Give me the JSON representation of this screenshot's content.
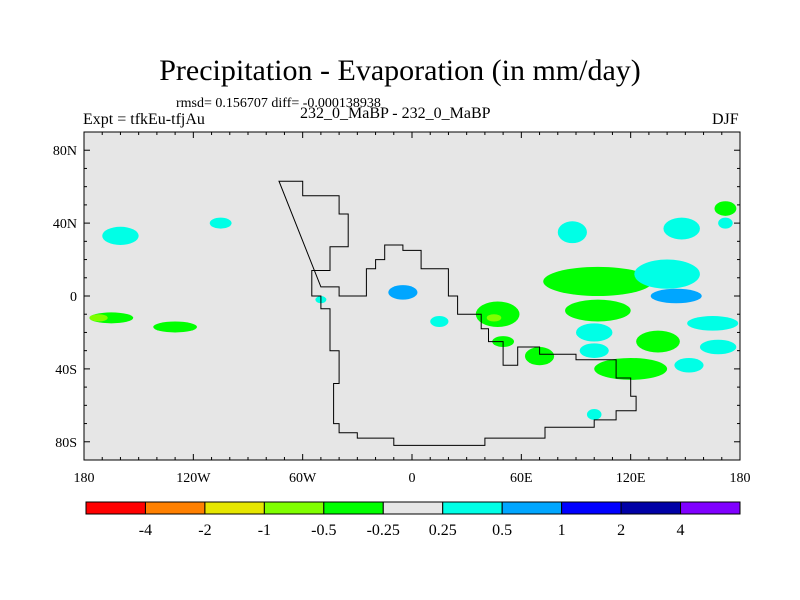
{
  "chart_data": {
    "type": "heatmap",
    "title": "Precipitation - Evaporation (in mm/day)",
    "stats_line": "rmsd= 0.156707 diff= -0.000138938",
    "left_label": "Expt = tfkEu-tfjAu",
    "center_label": "232_0_MaBP - 232_0_MaBP",
    "right_label": "DJF",
    "x_ticks": [
      "180",
      "120W",
      "60W",
      "0",
      "60E",
      "120E",
      "180"
    ],
    "x_tick_values": [
      -180,
      -120,
      -60,
      0,
      60,
      120,
      180
    ],
    "y_ticks": [
      "80N",
      "40N",
      "0",
      "40S",
      "80S"
    ],
    "y_tick_values": [
      80,
      40,
      0,
      -40,
      -80
    ],
    "xlim": [
      -180,
      180
    ],
    "ylim": [
      -90,
      90
    ],
    "colorbar": {
      "labels": [
        "-4",
        "-2",
        "-1",
        "-0.5",
        "-0.25",
        "0.25",
        "0.5",
        "1",
        "2",
        "4"
      ],
      "colors": [
        "#ff0000",
        "#ff8000",
        "#e6e600",
        "#80ff00",
        "#00ff00",
        "#e6e6e6",
        "#00ffe6",
        "#00a6ff",
        "#0000ff",
        "#0000a6",
        "#8000ff"
      ]
    },
    "background_color": "#e6e6e6",
    "anomalies": [
      {
        "lon": -165,
        "lat": -12,
        "rx": 12,
        "ry": 3,
        "level": "-0.25"
      },
      {
        "lon": -130,
        "lat": -17,
        "rx": 12,
        "ry": 3,
        "level": "-0.25"
      },
      {
        "lon": -172,
        "lat": -12,
        "rx": 5,
        "ry": 2,
        "level": "-0.5"
      },
      {
        "lon": -160,
        "lat": 33,
        "rx": 10,
        "ry": 5,
        "level": "0.25"
      },
      {
        "lon": -105,
        "lat": 40,
        "rx": 6,
        "ry": 3,
        "level": "0.25"
      },
      {
        "lon": -5,
        "lat": 2,
        "rx": 8,
        "ry": 4,
        "level": "0.5"
      },
      {
        "lon": 15,
        "lat": -14,
        "rx": 5,
        "ry": 3,
        "level": "0.25"
      },
      {
        "lon": 47,
        "lat": -10,
        "rx": 12,
        "ry": 7,
        "level": "-0.25"
      },
      {
        "lon": 45,
        "lat": -12,
        "rx": 4,
        "ry": 2,
        "level": "-0.5"
      },
      {
        "lon": 70,
        "lat": -33,
        "rx": 8,
        "ry": 5,
        "level": "-0.25"
      },
      {
        "lon": 88,
        "lat": 35,
        "rx": 8,
        "ry": 6,
        "level": "0.25"
      },
      {
        "lon": 102,
        "lat": 8,
        "rx": 30,
        "ry": 8,
        "level": "-0.25"
      },
      {
        "lon": 140,
        "lat": 12,
        "rx": 18,
        "ry": 8,
        "level": "0.25"
      },
      {
        "lon": 145,
        "lat": 0,
        "rx": 14,
        "ry": 4,
        "level": "0.5"
      },
      {
        "lon": 102,
        "lat": -8,
        "rx": 18,
        "ry": 6,
        "level": "-0.25"
      },
      {
        "lon": 100,
        "lat": -20,
        "rx": 10,
        "ry": 5,
        "level": "0.25"
      },
      {
        "lon": 135,
        "lat": -25,
        "rx": 12,
        "ry": 6,
        "level": "-0.25"
      },
      {
        "lon": 120,
        "lat": -40,
        "rx": 20,
        "ry": 6,
        "level": "-0.25"
      },
      {
        "lon": 100,
        "lat": -30,
        "rx": 8,
        "ry": 4,
        "level": "0.25"
      },
      {
        "lon": 148,
        "lat": 37,
        "rx": 10,
        "ry": 6,
        "level": "0.25"
      },
      {
        "lon": 172,
        "lat": 48,
        "rx": 6,
        "ry": 4,
        "level": "-0.25"
      },
      {
        "lon": 172,
        "lat": 40,
        "rx": 4,
        "ry": 3,
        "level": "0.25"
      },
      {
        "lon": 165,
        "lat": -15,
        "rx": 14,
        "ry": 4,
        "level": "0.25"
      },
      {
        "lon": 168,
        "lat": -28,
        "rx": 10,
        "ry": 4,
        "level": "0.25"
      },
      {
        "lon": 152,
        "lat": -38,
        "rx": 8,
        "ry": 4,
        "level": "0.25"
      },
      {
        "lon": 50,
        "lat": -25,
        "rx": 6,
        "ry": 3,
        "level": "-0.25"
      },
      {
        "lon": 100,
        "lat": -65,
        "rx": 4,
        "ry": 3,
        "level": "0.25"
      },
      {
        "lon": -50,
        "lat": -2,
        "rx": 3,
        "ry": 2,
        "level": "0.25"
      }
    ],
    "outlines": [
      [
        [
          -73,
          63
        ],
        [
          -60,
          63
        ],
        [
          -60,
          55
        ],
        [
          -40,
          55
        ],
        [
          -40,
          45
        ],
        [
          -35,
          45
        ],
        [
          -35,
          27
        ],
        [
          -45,
          27
        ],
        [
          -45,
          14
        ],
        [
          -55,
          14
        ],
        [
          -55,
          0
        ],
        [
          -50,
          0
        ],
        [
          -50,
          -7
        ],
        [
          -45,
          -7
        ],
        [
          -45,
          -30
        ],
        [
          -40,
          -30
        ],
        [
          -40,
          -48
        ],
        [
          -43,
          -48
        ],
        [
          -43,
          -55
        ],
        [
          -43,
          -70
        ],
        [
          -40,
          -70
        ],
        [
          -40,
          -75
        ],
        [
          -30,
          -75
        ],
        [
          -30,
          -78
        ],
        [
          -10,
          -78
        ],
        [
          -10,
          -82
        ],
        [
          40,
          -82
        ],
        [
          40,
          -78
        ],
        [
          73,
          -78
        ],
        [
          73,
          -72
        ],
        [
          100,
          -72
        ],
        [
          100,
          -68
        ],
        [
          112,
          -68
        ],
        [
          112,
          -63
        ],
        [
          123,
          -63
        ],
        [
          123,
          -55
        ],
        [
          120,
          -55
        ],
        [
          120,
          -45
        ],
        [
          112,
          -45
        ],
        [
          112,
          -35
        ],
        [
          90,
          -35
        ],
        [
          90,
          -32
        ],
        [
          70,
          -32
        ],
        [
          70,
          -28
        ],
        [
          58,
          -28
        ],
        [
          58,
          -38
        ],
        [
          50,
          -38
        ],
        [
          50,
          -25
        ],
        [
          42,
          -25
        ],
        [
          42,
          -18
        ],
        [
          38,
          -18
        ],
        [
          38,
          -10
        ],
        [
          25,
          -10
        ],
        [
          25,
          0
        ],
        [
          20,
          0
        ],
        [
          20,
          15
        ],
        [
          5,
          15
        ],
        [
          5,
          25
        ],
        [
          -5,
          25
        ],
        [
          -5,
          28
        ],
        [
          -15,
          28
        ],
        [
          -15,
          20
        ],
        [
          -20,
          20
        ],
        [
          -20,
          15
        ],
        [
          -25,
          15
        ],
        [
          -25,
          0
        ],
        [
          -40,
          0
        ],
        [
          -40,
          5
        ],
        [
          -50,
          5
        ]
      ]
    ]
  }
}
